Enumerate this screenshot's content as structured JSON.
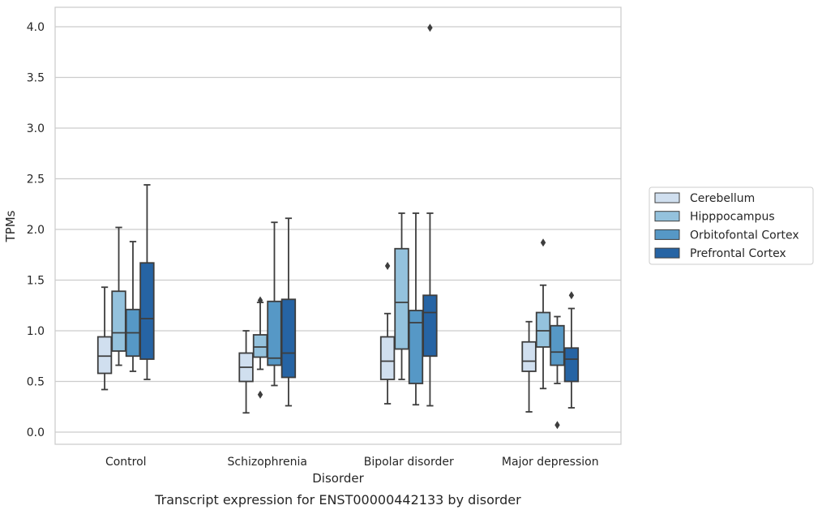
{
  "chart_data": {
    "type": "boxplot",
    "title": "",
    "caption": "Transcript expression for ENST00000442133 by disorder",
    "xlabel": "Disorder",
    "ylabel": "TPMs",
    "ylim": [
      -0.12,
      4.2
    ],
    "yticks": [
      "0.0",
      "0.5",
      "1.0",
      "1.5",
      "2.0",
      "2.5",
      "3.0",
      "3.5",
      "4.0"
    ],
    "ytick_values": [
      0.0,
      0.5,
      1.0,
      1.5,
      2.0,
      2.5,
      3.0,
      3.5,
      4.0
    ],
    "grid": "horizontal",
    "legend_position": "right",
    "categories": [
      "Control",
      "Schizophrenia",
      "Bipolar disorder",
      "Major depression"
    ],
    "series": [
      {
        "name": "Cerebellum",
        "color": "#d0dfef",
        "boxes": [
          {
            "whislo": 0.42,
            "q1": 0.58,
            "med": 0.75,
            "q3": 0.94,
            "whishi": 1.43,
            "fliers": []
          },
          {
            "whislo": 0.19,
            "q1": 0.5,
            "med": 0.64,
            "q3": 0.78,
            "whishi": 1.0,
            "fliers": []
          },
          {
            "whislo": 0.28,
            "q1": 0.52,
            "med": 0.7,
            "q3": 0.94,
            "whishi": 1.17,
            "fliers": [
              1.64
            ]
          },
          {
            "whislo": 0.2,
            "q1": 0.6,
            "med": 0.7,
            "q3": 0.89,
            "whishi": 1.09,
            "fliers": []
          }
        ]
      },
      {
        "name": "Hipppocampus",
        "color": "#94c2dd",
        "boxes": [
          {
            "whislo": 0.66,
            "q1": 0.8,
            "med": 0.98,
            "q3": 1.39,
            "whishi": 2.02,
            "fliers": []
          },
          {
            "whislo": 0.62,
            "q1": 0.74,
            "med": 0.84,
            "q3": 0.96,
            "whishi": 1.28,
            "fliers": [
              0.37,
              1.3
            ]
          },
          {
            "whislo": 0.52,
            "q1": 0.82,
            "med": 1.28,
            "q3": 1.81,
            "whishi": 2.16,
            "fliers": []
          },
          {
            "whislo": 0.43,
            "q1": 0.84,
            "med": 1.0,
            "q3": 1.18,
            "whishi": 1.45,
            "fliers": [
              1.87
            ]
          }
        ]
      },
      {
        "name": "Orbitofontal Cortex",
        "color": "#5698c6",
        "boxes": [
          {
            "whislo": 0.6,
            "q1": 0.75,
            "med": 0.98,
            "q3": 1.21,
            "whishi": 1.88,
            "fliers": []
          },
          {
            "whislo": 0.46,
            "q1": 0.66,
            "med": 0.73,
            "q3": 1.29,
            "whishi": 2.07,
            "fliers": []
          },
          {
            "whislo": 0.27,
            "q1": 0.48,
            "med": 1.08,
            "q3": 1.2,
            "whishi": 2.16,
            "fliers": []
          },
          {
            "whislo": 0.48,
            "q1": 0.66,
            "med": 0.79,
            "q3": 1.05,
            "whishi": 1.14,
            "fliers": [
              0.07
            ]
          }
        ]
      },
      {
        "name": "Prefrontal Cortex",
        "color": "#2664a4",
        "boxes": [
          {
            "whislo": 0.52,
            "q1": 0.72,
            "med": 1.12,
            "q3": 1.67,
            "whishi": 2.44,
            "fliers": []
          },
          {
            "whislo": 0.26,
            "q1": 0.54,
            "med": 0.78,
            "q3": 1.31,
            "whishi": 2.11,
            "fliers": []
          },
          {
            "whislo": 0.26,
            "q1": 0.75,
            "med": 1.18,
            "q3": 1.35,
            "whishi": 2.16,
            "fliers": [
              3.99
            ]
          },
          {
            "whislo": 0.24,
            "q1": 0.5,
            "med": 0.72,
            "q3": 0.83,
            "whishi": 1.22,
            "fliers": [
              1.35
            ]
          }
        ]
      }
    ]
  }
}
